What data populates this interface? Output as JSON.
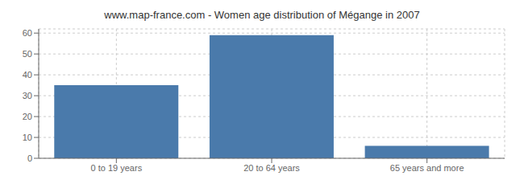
{
  "chart_data": {
    "type": "bar",
    "title": "www.map-france.com - Women age distribution of Mégange in 2007",
    "categories": [
      "0 to 19 years",
      "20 to 64 years",
      "65 years and more"
    ],
    "values": [
      35,
      59,
      6
    ],
    "color": "#4a7aab",
    "ylim": [
      0,
      62
    ],
    "yticks": [
      0,
      10,
      20,
      30,
      40,
      50,
      60
    ],
    "grid": true
  }
}
